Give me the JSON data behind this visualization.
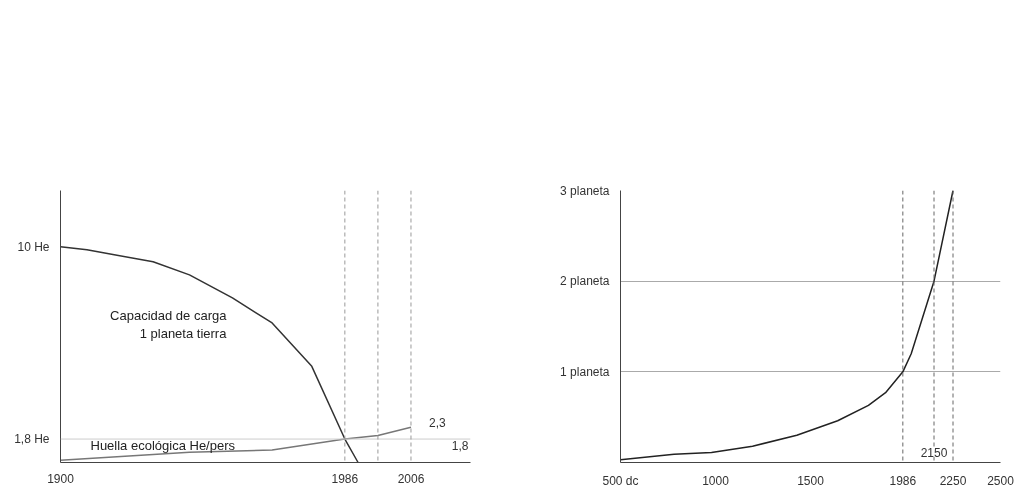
{
  "chart_data": [
    {
      "type": "line",
      "xlim": [
        1900,
        2024
      ],
      "ylim": [
        0.8,
        12.4
      ],
      "xticks": [
        1900,
        1986,
        2006
      ],
      "yticks": [
        {
          "value": 10,
          "label": "10 He"
        },
        {
          "value": 1.8,
          "label": "1,8 He"
        }
      ],
      "grid": false,
      "series": [
        {
          "name": "Capacidad de carga\n1 planeta tierra",
          "color": "#333333",
          "x": [
            1900,
            1908,
            1928,
            1939,
            1952,
            1964,
            1976,
            1986,
            1990
          ],
          "values": [
            10,
            9.87,
            9.36,
            8.8,
            7.82,
            6.75,
            4.9,
            1.8,
            0.8
          ]
        },
        {
          "name": "Huella ecológica He/pers",
          "color": "#777777",
          "x": [
            1900,
            1939,
            1964,
            1986,
            1996,
            2006
          ],
          "values": [
            0.9,
            1.24,
            1.33,
            1.8,
            1.95,
            2.3
          ]
        }
      ],
      "ref_lines": [
        {
          "axis": "y",
          "value": 1.8,
          "label": "1,8",
          "color": "#cccccc",
          "line_style": "solid"
        },
        {
          "axis": "x",
          "value": 1986,
          "label": null,
          "color": "#999999",
          "line_style": "dashed"
        },
        {
          "axis": "x",
          "value": 1996,
          "label": null,
          "color": "#999999",
          "line_style": "dashed"
        },
        {
          "axis": "x",
          "value": 2006,
          "label": null,
          "color": "#999999",
          "line_style": "dashed"
        }
      ],
      "annotations": [
        {
          "text": "2,3",
          "x": 2006,
          "y": 2.3
        }
      ]
    },
    {
      "type": "line",
      "xlim": [
        500,
        2500
      ],
      "ylim": [
        0,
        3
      ],
      "xticks": [
        {
          "value": 500,
          "label": "500 dc"
        },
        1000,
        1500,
        1986,
        2250,
        2500
      ],
      "yticks": [
        {
          "value": 1,
          "label": "1 planeta"
        },
        {
          "value": 2,
          "label": "2 planeta"
        },
        {
          "value": 3,
          "label": "3 planeta"
        }
      ],
      "grid": "y",
      "series": [
        {
          "color": "#222222",
          "x": [
            500,
            782,
            979,
            1195,
            1428,
            1643,
            1805,
            1895,
            1986,
            2030,
            2150,
            2250
          ],
          "values": [
            0.03,
            0.09,
            0.11,
            0.18,
            0.3,
            0.46,
            0.63,
            0.77,
            1,
            1.2,
            2,
            3
          ]
        }
      ],
      "ref_lines": [
        {
          "axis": "x",
          "value": 1986,
          "label": null,
          "color": "#666666",
          "line_style": "dashed"
        },
        {
          "axis": "x",
          "value": 2150,
          "label": "2150",
          "color": "#666666",
          "line_style": "dashed"
        },
        {
          "axis": "x",
          "value": 2250,
          "label": null,
          "color": "#666666",
          "line_style": "dashed"
        }
      ]
    }
  ]
}
